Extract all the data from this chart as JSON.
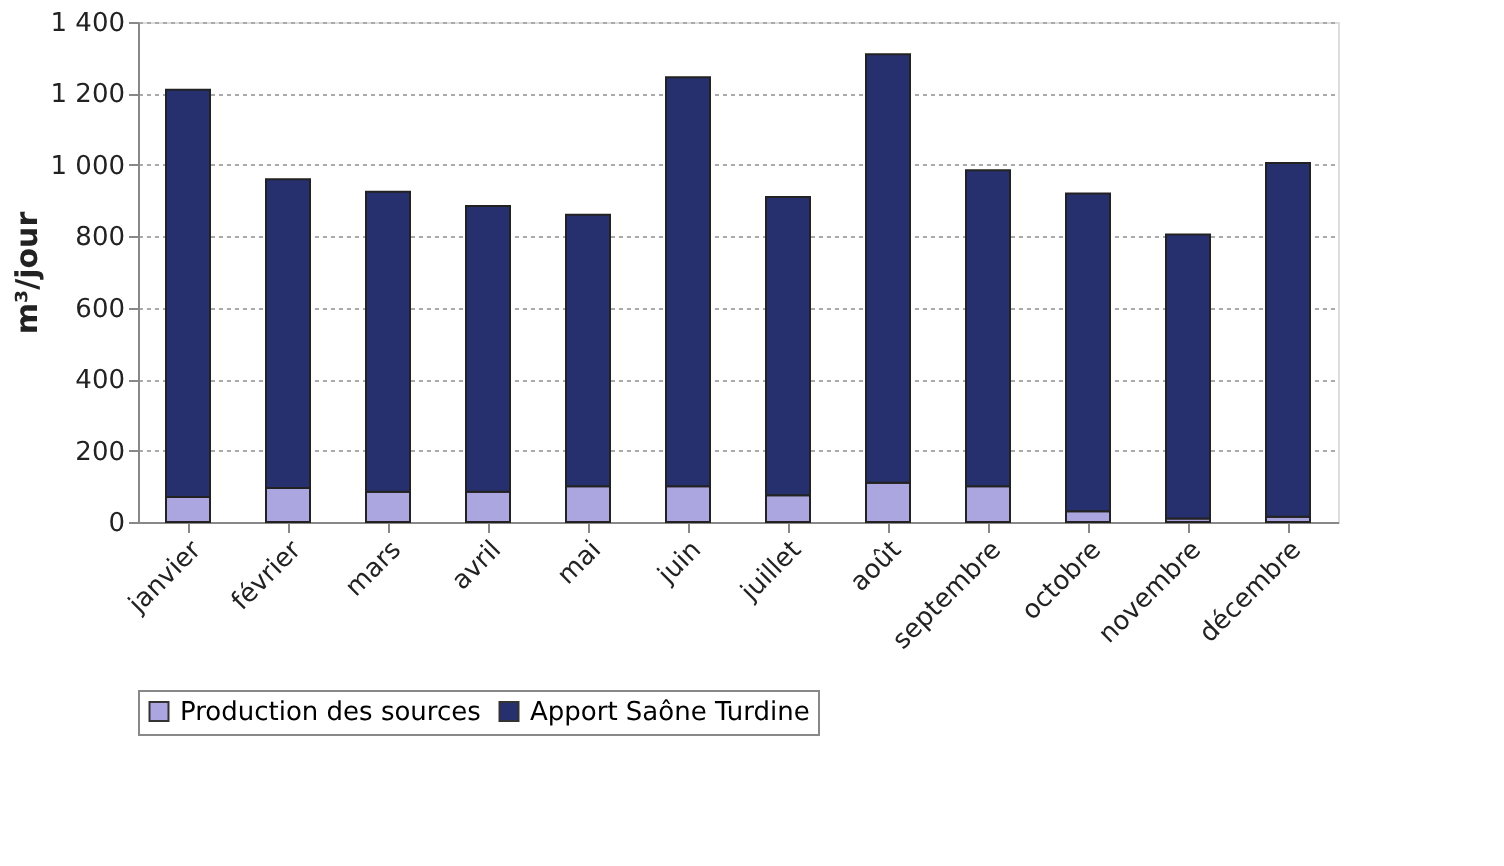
{
  "chart_data": {
    "type": "bar",
    "stacked": true,
    "ylabel": "m³/jour",
    "categories": [
      "janvier",
      "février",
      "mars",
      "avril",
      "mai",
      "juin",
      "juillet",
      "août",
      "septembre",
      "octobre",
      "novembre",
      "décembre"
    ],
    "series": [
      {
        "name": "Production des sources",
        "color": "#aba6e0",
        "values": [
          70,
          95,
          85,
          85,
          100,
          100,
          75,
          110,
          100,
          30,
          10,
          15
        ]
      },
      {
        "name": "Apport Saône Turdine",
        "color": "#27306e",
        "values": [
          1140,
          865,
          840,
          800,
          760,
          1145,
          835,
          1200,
          885,
          890,
          795,
          990
        ]
      }
    ],
    "ylim": [
      0,
      1400
    ],
    "yticks": [
      0,
      200,
      400,
      600,
      800,
      {
        "value": 1000,
        "label": "1 000"
      },
      {
        "value": 1200,
        "label": "1 200"
      },
      {
        "value": 1400,
        "label": "1 400"
      }
    ],
    "grid": "y",
    "legend": "bottom"
  }
}
